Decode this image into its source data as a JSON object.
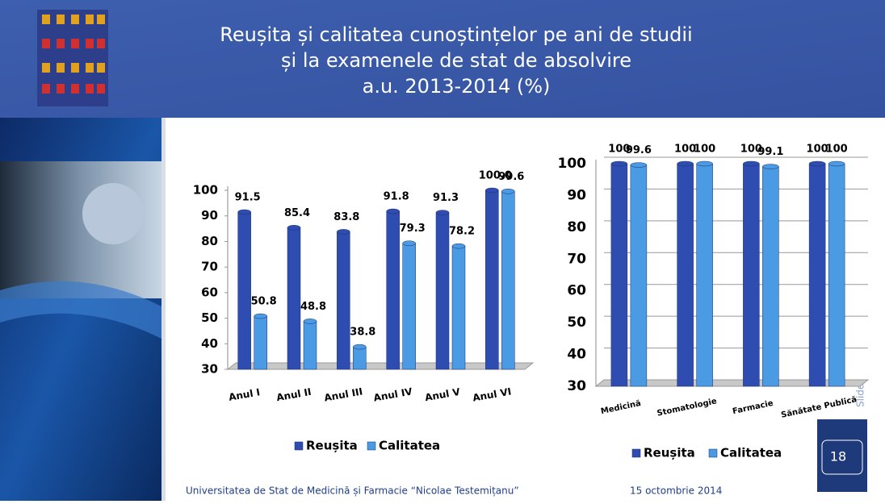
{
  "slide": {
    "title": [
      "Reușita și calitatea cunoștințelor pe ani de studii",
      "și la examenele de stat de absolvire",
      "a.u. 2013-2014 (%)"
    ],
    "footer": {
      "institution": "Universitatea de Stat de Medicină și Farmacie “Nicolae Testemițanu”",
      "date": "15 octombrie 2014"
    },
    "slide_number": "18",
    "slide_label": "Slide"
  },
  "chart_data": [
    {
      "type": "bar",
      "categories": [
        "Anul I",
        "Anul II",
        "Anul III",
        "Anul IV",
        "Anul V",
        "Anul VI"
      ],
      "series": [
        {
          "name": "Reușita",
          "color": "#2f4db0",
          "values": [
            91.5,
            85.4,
            83.8,
            91.8,
            91.3,
            100
          ],
          "value_labels": [
            "91.5",
            "85.4",
            "83.8",
            "91.8",
            "91.3",
            "100.0"
          ]
        },
        {
          "name": "Calitatea",
          "color": "#4a9be3",
          "values": [
            50.8,
            48.8,
            38.8,
            79.3,
            78.2,
            99.6
          ]
        }
      ],
      "ylim": [
        30,
        100
      ],
      "yticks": [
        30,
        40,
        50,
        60,
        70,
        80,
        90,
        100
      ],
      "grid": false,
      "legend": "bottom"
    },
    {
      "type": "bar",
      "categories": [
        "Medicină",
        "Stomatologie",
        "Farmacie",
        "Sănătate Publică"
      ],
      "series": [
        {
          "name": "Reușita",
          "color": "#2f4db0",
          "values": [
            100,
            100,
            100,
            100
          ]
        },
        {
          "name": "Calitatea",
          "color": "#4a9be3",
          "values": [
            99.6,
            100,
            99.1,
            100
          ]
        }
      ],
      "ylim": [
        30,
        100
      ],
      "yticks": [
        30,
        40,
        50,
        60,
        70,
        80,
        90,
        100
      ],
      "grid": true,
      "legend": "bottom"
    }
  ]
}
